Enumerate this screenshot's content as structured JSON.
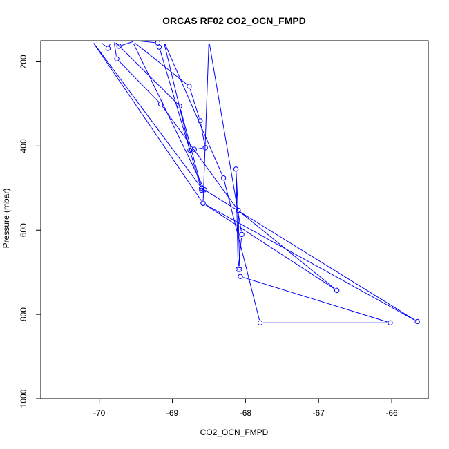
{
  "chart_data": {
    "type": "line",
    "title": "ORCAS RF02 CO2_OCN_FMPD",
    "xlabel": "CO2_OCN_FMPD",
    "ylabel": "Pressure (mbar)",
    "xlim": [
      -70.8,
      -65.5
    ],
    "ylim": [
      1000,
      150
    ],
    "y_reversed": true,
    "xticks": [
      -70,
      -69,
      -68,
      -67,
      -66
    ],
    "yticks": [
      200,
      400,
      600,
      800,
      1000
    ],
    "grid": false,
    "legend": "none",
    "marker": "open-circle",
    "series": [
      {
        "values": [
          {
            "x": -70.0,
            "y": 150
          },
          {
            "x": -69.88,
            "y": 168
          },
          {
            "x": -69.83,
            "y": 150
          },
          {
            "x": -69.73,
            "y": 163
          },
          {
            "x": -69.5,
            "y": 150
          },
          {
            "x": -69.2,
            "y": 155
          },
          {
            "x": -69.18,
            "y": 165
          },
          {
            "x": -68.6,
            "y": 505
          },
          {
            "x": -68.56,
            "y": 504
          },
          {
            "x": -69.55,
            "y": 150
          },
          {
            "x": -68.77,
            "y": 258
          },
          {
            "x": -68.62,
            "y": 340
          },
          {
            "x": -68.55,
            "y": 404
          },
          {
            "x": -68.7,
            "y": 408
          },
          {
            "x": -68.76,
            "y": 410
          },
          {
            "x": -69.12,
            "y": 150
          },
          {
            "x": -68.3,
            "y": 476
          },
          {
            "x": -67.8,
            "y": 820
          },
          {
            "x": -66.02,
            "y": 820
          },
          {
            "x": -68.07,
            "y": 710
          },
          {
            "x": -68.08,
            "y": 693
          },
          {
            "x": -68.1,
            "y": 553
          },
          {
            "x": -68.13,
            "y": 455
          },
          {
            "x": -68.1,
            "y": 693
          },
          {
            "x": -68.05,
            "y": 610
          },
          {
            "x": -68.5,
            "y": 150
          },
          {
            "x": -68.58,
            "y": 536
          },
          {
            "x": -66.75,
            "y": 743
          },
          {
            "x": -68.1,
            "y": 553
          },
          {
            "x": -69.16,
            "y": 300
          },
          {
            "x": -69.76,
            "y": 193
          },
          {
            "x": -69.8,
            "y": 150
          },
          {
            "x": -68.9,
            "y": 305
          },
          {
            "x": -68.6,
            "y": 500
          },
          {
            "x": -70.1,
            "y": 150
          },
          {
            "x": -68.58,
            "y": 536
          },
          {
            "x": -65.65,
            "y": 817
          },
          {
            "x": -68.6,
            "y": 500
          }
        ]
      }
    ],
    "colors": {
      "series": "#0000ff",
      "axes": "#000000",
      "background": "#ffffff"
    }
  }
}
